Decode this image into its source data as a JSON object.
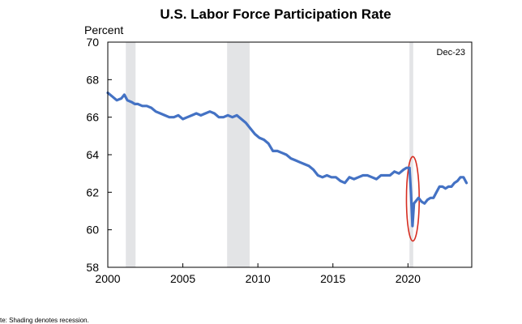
{
  "chart_data": {
    "type": "line",
    "title": "U.S. Labor Force Participation  Rate",
    "ylabel": "Percent",
    "xlabel": "",
    "date_label": "Dec-23",
    "note": "te: Shading denotes recession.",
    "xlim": [
      2000,
      2024.25
    ],
    "ylim": [
      58,
      70
    ],
    "x_ticks": [
      2000,
      2005,
      2010,
      2015,
      2020
    ],
    "y_ticks": [
      58,
      60,
      62,
      64,
      66,
      68,
      70
    ],
    "recessions": [
      [
        2001.2,
        2001.85
      ],
      [
        2007.95,
        2009.45
      ],
      [
        2020.1,
        2020.35
      ]
    ],
    "annotation": {
      "label": "COVID-19 drop highlight",
      "x_range": [
        2019.9,
        2020.75
      ],
      "y_range": [
        59.4,
        63.9
      ],
      "color": "#d62d20"
    },
    "series": [
      {
        "name": "Labor Force Participation Rate",
        "color": "#4472c4",
        "x": [
          2000.0,
          2000.3,
          2000.6,
          2000.9,
          2001.1,
          2001.3,
          2001.6,
          2001.8,
          2002.0,
          2002.3,
          2002.6,
          2002.9,
          2003.2,
          2003.5,
          2003.8,
          2004.1,
          2004.4,
          2004.7,
          2005.0,
          2005.3,
          2005.6,
          2005.9,
          2006.2,
          2006.5,
          2006.8,
          2007.1,
          2007.4,
          2007.7,
          2008.0,
          2008.3,
          2008.6,
          2008.9,
          2009.2,
          2009.5,
          2009.8,
          2010.1,
          2010.4,
          2010.7,
          2011.0,
          2011.3,
          2011.6,
          2011.9,
          2012.2,
          2012.5,
          2012.8,
          2013.1,
          2013.4,
          2013.7,
          2014.0,
          2014.3,
          2014.6,
          2014.9,
          2015.2,
          2015.5,
          2015.8,
          2016.1,
          2016.4,
          2016.7,
          2017.0,
          2017.3,
          2017.6,
          2017.9,
          2018.2,
          2018.5,
          2018.8,
          2019.1,
          2019.4,
          2019.7,
          2019.9,
          2020.1,
          2020.2,
          2020.3,
          2020.4,
          2020.5,
          2020.7,
          2020.9,
          2021.1,
          2021.3,
          2021.5,
          2021.7,
          2021.9,
          2022.1,
          2022.3,
          2022.5,
          2022.7,
          2022.9,
          2023.1,
          2023.3,
          2023.5,
          2023.7,
          2023.9
        ],
        "values": [
          67.3,
          67.1,
          66.9,
          67.0,
          67.2,
          66.9,
          66.8,
          66.7,
          66.7,
          66.6,
          66.6,
          66.5,
          66.3,
          66.2,
          66.1,
          66.0,
          66.0,
          66.1,
          65.9,
          66.0,
          66.1,
          66.2,
          66.1,
          66.2,
          66.3,
          66.2,
          66.0,
          66.0,
          66.1,
          66.0,
          66.1,
          65.9,
          65.7,
          65.4,
          65.1,
          64.9,
          64.8,
          64.6,
          64.2,
          64.2,
          64.1,
          64.0,
          63.8,
          63.7,
          63.6,
          63.5,
          63.4,
          63.2,
          62.9,
          62.8,
          62.9,
          62.8,
          62.8,
          62.6,
          62.5,
          62.8,
          62.7,
          62.8,
          62.9,
          62.9,
          62.8,
          62.7,
          62.9,
          62.9,
          62.9,
          63.1,
          63.0,
          63.2,
          63.3,
          63.3,
          62.0,
          60.2,
          61.4,
          61.5,
          61.7,
          61.5,
          61.4,
          61.6,
          61.7,
          61.7,
          62.0,
          62.3,
          62.3,
          62.2,
          62.3,
          62.3,
          62.5,
          62.6,
          62.8,
          62.8,
          62.5
        ]
      }
    ]
  }
}
